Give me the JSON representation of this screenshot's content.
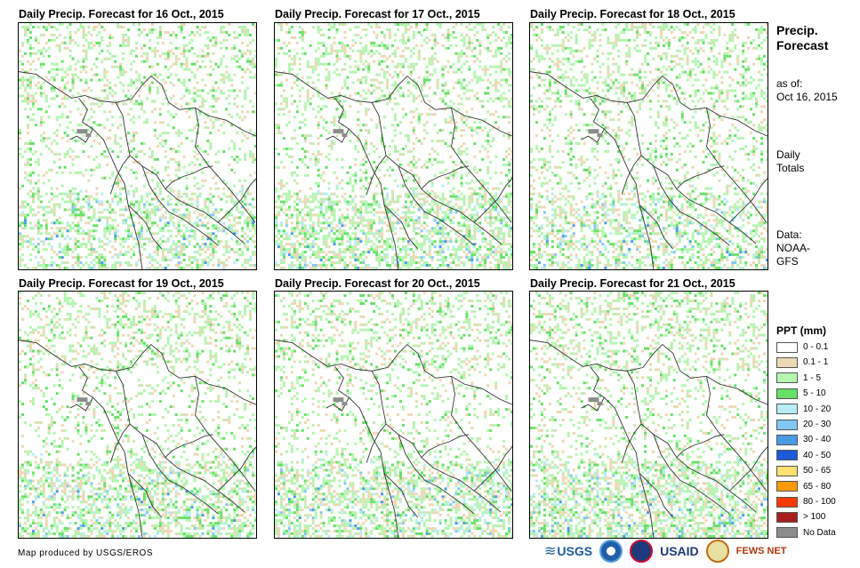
{
  "panels": [
    {
      "title": "Daily Precip. Forecast for 16 Oct., 2015"
    },
    {
      "title": "Daily Precip. Forecast for 17 Oct., 2015"
    },
    {
      "title": "Daily Precip. Forecast for 18 Oct., 2015"
    },
    {
      "title": "Daily Precip. Forecast for 19 Oct., 2015"
    },
    {
      "title": "Daily Precip. Forecast for 20 Oct., 2015"
    },
    {
      "title": "Daily Precip. Forecast for 21 Oct., 2015"
    }
  ],
  "sidebar": {
    "title_line1": "Precip.",
    "title_line2": "Forecast",
    "asof_line1": "as of:",
    "asof_line2": "Oct 16, 2015",
    "totals_line1": "Daily",
    "totals_line2": "Totals",
    "data_line1": "Data:",
    "data_line2": "NOAA-",
    "data_line3": "GFS"
  },
  "legend": {
    "title": "PPT (mm)",
    "items": [
      {
        "label": "0 - 0.1",
        "color": "#ffffff"
      },
      {
        "label": "0.1 - 1",
        "color": "#ecd8b4"
      },
      {
        "label": "1 - 5",
        "color": "#b4f5b0"
      },
      {
        "label": "5 - 10",
        "color": "#66e066"
      },
      {
        "label": "10 - 20",
        "color": "#b8ecf5"
      },
      {
        "label": "20 - 30",
        "color": "#82c8f5"
      },
      {
        "label": "30 - 40",
        "color": "#4a9ae8"
      },
      {
        "label": "40 - 50",
        "color": "#1e5ad8"
      },
      {
        "label": "50 - 65",
        "color": "#ffe070"
      },
      {
        "label": "65 - 80",
        "color": "#ff9a00"
      },
      {
        "label": "80 - 100",
        "color": "#ff3a00"
      },
      {
        "label": "> 100",
        "color": "#a81e1e"
      },
      {
        "label": "No Data",
        "color": "#8c8c8c"
      }
    ]
  },
  "credit": "Map produced by USGS/EROS",
  "logos": {
    "usgs": "USGS",
    "usaid": "USAID",
    "fewsnet": "FEWS NET"
  }
}
